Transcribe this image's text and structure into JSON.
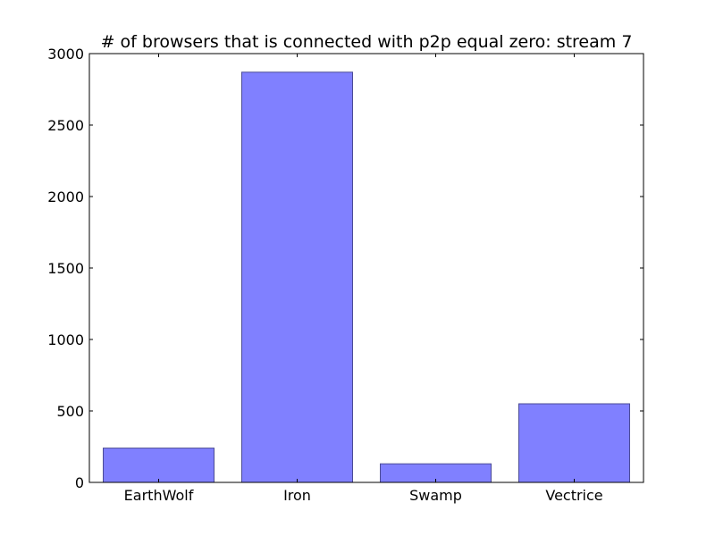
{
  "chart_data": {
    "type": "bar",
    "title": "# of browsers that is connected with p2p equal zero: stream  7",
    "xlabel": "",
    "ylabel": "",
    "categories": [
      "EarthWolf",
      "Iron",
      "Swamp",
      "Vectrice"
    ],
    "values": [
      240,
      2870,
      130,
      550
    ],
    "ylim": [
      0,
      3000
    ],
    "yticks": [
      0,
      500,
      1000,
      1500,
      2000,
      2500,
      3000
    ],
    "grid": false,
    "legend": "none",
    "bar_color": "#8080ff",
    "bar_edge_color": "#4b4b96"
  }
}
